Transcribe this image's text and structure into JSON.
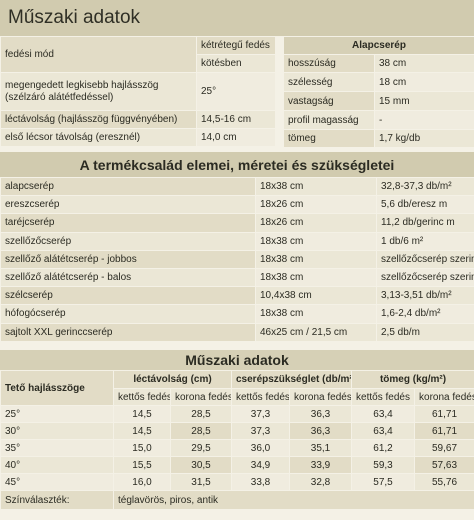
{
  "title": "Műszaki adatok",
  "tech_left": {
    "fedesi_label": "fedési mód",
    "fedesi_values": [
      "kétrétegű fedés",
      "kötésben"
    ],
    "rows": [
      {
        "label": "megengedett legkisebb hajlásszög (szélzáró alátétfedéssel)",
        "value": "25°"
      },
      {
        "label": "léctávolság (hajlásszög függvényében)",
        "value": "14,5-16 cm"
      },
      {
        "label": "első lécsor távolság (eresznél)",
        "value": "14,0 cm"
      }
    ]
  },
  "tech_right": {
    "header": "Alapcserép",
    "rows": [
      {
        "label": "hosszúság",
        "value": "38 cm"
      },
      {
        "label": "szélesség",
        "value": "18 cm"
      },
      {
        "label": "vastagság",
        "value": "15 mm"
      },
      {
        "label": "profil magasság",
        "value": "-"
      },
      {
        "label": "tömeg",
        "value": "1,7 kg/db"
      }
    ]
  },
  "family_title": "A termékcsalád elemei, méretei és szükségletei",
  "family_rows": [
    {
      "name": "alapcserép",
      "size": "18x38 cm",
      "need": "32,8-37,3 db/m²"
    },
    {
      "name": "ereszcserép",
      "size": "18x26 cm",
      "need": "5,6 db/eresz m"
    },
    {
      "name": "taréjcserép",
      "size": "18x26 cm",
      "need": "11,2 db/gerinc m"
    },
    {
      "name": "szellőzőcserép",
      "size": "18x38 cm",
      "need": "1 db/6 m²"
    },
    {
      "name": "szellőző alátétcserép - jobbos",
      "size": "18x38 cm",
      "need": "szellőzőcserép szerint"
    },
    {
      "name": "szellőző alátétcserép - balos",
      "size": "18x38 cm",
      "need": "szellőzőcserép szerint"
    },
    {
      "name": "szélcserép",
      "size": "10,4x38 cm",
      "need": "3,13-3,51 db/m²"
    },
    {
      "name": "hófogócserép",
      "size": "18x38 cm",
      "need": "1,6-2,4 db/m²"
    },
    {
      "name": "sajtolt XXL gerinccserép",
      "size": "46x25 cm / 21,5 cm",
      "need": "2,5 db/m"
    }
  ],
  "specs_title": "Műszaki adatok",
  "specs": {
    "col_angle": "Tető hajlásszöge",
    "col_lec": "léctávolság (cm)",
    "col_need": "cserépszükséglet (db/m²)",
    "col_mass": "tömeg (kg/m²)",
    "sub_a": "kettős fedés",
    "sub_b": "korona fedés",
    "rows": [
      {
        "angle": "25°",
        "v": [
          "14,5",
          "28,5",
          "37,3",
          "36,3",
          "63,4",
          "61,71"
        ]
      },
      {
        "angle": "30°",
        "v": [
          "14,5",
          "28,5",
          "37,3",
          "36,3",
          "63,4",
          "61,71"
        ]
      },
      {
        "angle": "35°",
        "v": [
          "15,0",
          "29,5",
          "36,0",
          "35,1",
          "61,2",
          "59,67"
        ]
      },
      {
        "angle": "40°",
        "v": [
          "15,5",
          "30,5",
          "34,9",
          "33,9",
          "59,3",
          "57,63"
        ]
      },
      {
        "angle": "45°",
        "v": [
          "16,0",
          "31,5",
          "33,8",
          "32,8",
          "57,5",
          "55,76"
        ]
      }
    ],
    "color_label": "Színválaszték:",
    "color_value": "téglavörös, piros, antik"
  }
}
